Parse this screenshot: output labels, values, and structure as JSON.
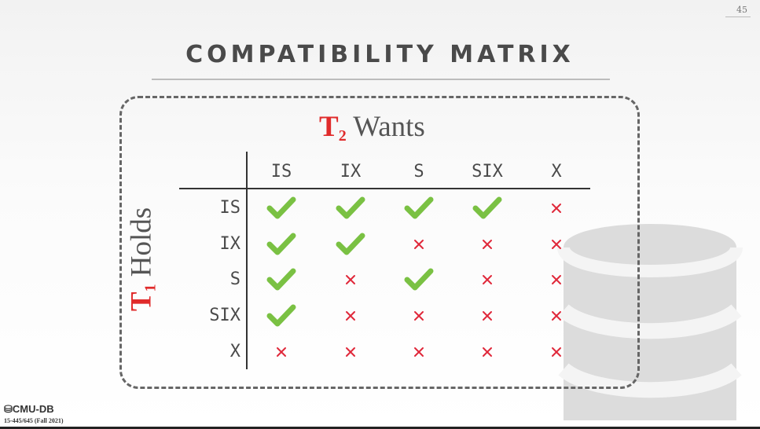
{
  "slide": {
    "page_number": "45",
    "title": "COMPATIBILITY MATRIX",
    "footer_logo": "CMU-DB",
    "footer_course": "15-445/645 (Fall 2021)"
  },
  "labels": {
    "t2_var": "T",
    "t2_sub": "2",
    "t2_text": " Wants",
    "t1_var": "T",
    "t1_sub": "1",
    "t1_text": " Holds"
  },
  "matrix": {
    "columns": [
      "IS",
      "IX",
      "S",
      "SIX",
      "X"
    ],
    "rows": [
      "IS",
      "IX",
      "S",
      "SIX",
      "X"
    ],
    "compatible": [
      [
        true,
        true,
        true,
        true,
        false
      ],
      [
        true,
        true,
        false,
        false,
        false
      ],
      [
        true,
        false,
        true,
        false,
        false
      ],
      [
        true,
        false,
        false,
        false,
        false
      ],
      [
        false,
        false,
        false,
        false,
        false
      ]
    ]
  },
  "colors": {
    "check": "#7ac143",
    "cross": "#e0283a",
    "accent": "#e02b2b",
    "text": "#4a4a4a",
    "grid": "#333333"
  }
}
